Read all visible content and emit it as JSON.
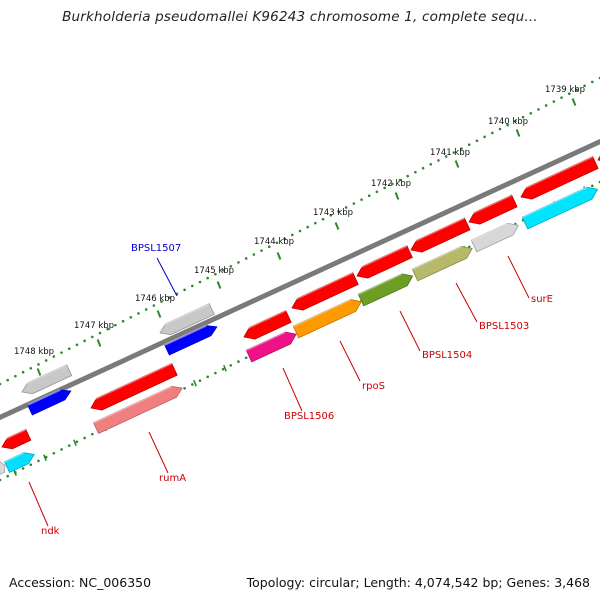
{
  "title": "Burkholderia pseudomallei K96243 chromosome 1, complete sequ...",
  "footer": {
    "accession": "Accession: NC_006350",
    "summary": "Topology: circular; Length: 4,074,542 bp; Genes: 3,468"
  },
  "colors": {
    "backbone": "#8a8a8a",
    "tick": "#2a8a2a",
    "label_line_red": "#cc0000",
    "label_line_blue": "#0000cc"
  },
  "scale_labels": [
    "1739 kbp",
    "1740 kbp",
    "1741 kbp",
    "1742 kbp",
    "1743 kbp",
    "1744 kbp",
    "1745 kbp",
    "1746 kbp",
    "1747 kbp",
    "1748 kbp"
  ],
  "outer_ring": [
    {
      "color": "#ff0000"
    },
    {
      "color": "#ff0000"
    },
    {
      "color": "#ff0000"
    },
    {
      "color": "#ff0000"
    },
    {
      "color": "#ff0000"
    },
    {
      "color": "#ff0000"
    },
    {
      "color": "#c8c8c8"
    },
    {
      "color": "#ff0000"
    },
    {
      "color": "#c8c8c8"
    },
    {
      "color": "#ff0000"
    }
  ],
  "inner_ring": [
    {
      "color": "#00e5ff"
    },
    {
      "color": "#d7d7d7"
    },
    {
      "color": "#b8b86a"
    },
    {
      "color": "#6b9e23"
    },
    {
      "color": "#ff9900"
    },
    {
      "color": "#ee1188"
    },
    {
      "color": "#f08080"
    },
    {
      "color": "#00dfff"
    }
  ],
  "extra_ring": [
    {
      "color": "#0000ff"
    },
    {
      "color": "#0000ff"
    }
  ],
  "gene_labels": [
    {
      "text": "BPSL1507",
      "color": "#0000cc"
    },
    {
      "text": "surE",
      "color": "#cc0000"
    },
    {
      "text": "BPSL1503",
      "color": "#cc0000"
    },
    {
      "text": "BPSL1504",
      "color": "#cc0000"
    },
    {
      "text": "rpoS",
      "color": "#cc0000"
    },
    {
      "text": "BPSL1506",
      "color": "#cc0000"
    },
    {
      "text": "rumA",
      "color": "#cc0000"
    },
    {
      "text": "ndk",
      "color": "#cc0000"
    }
  ]
}
